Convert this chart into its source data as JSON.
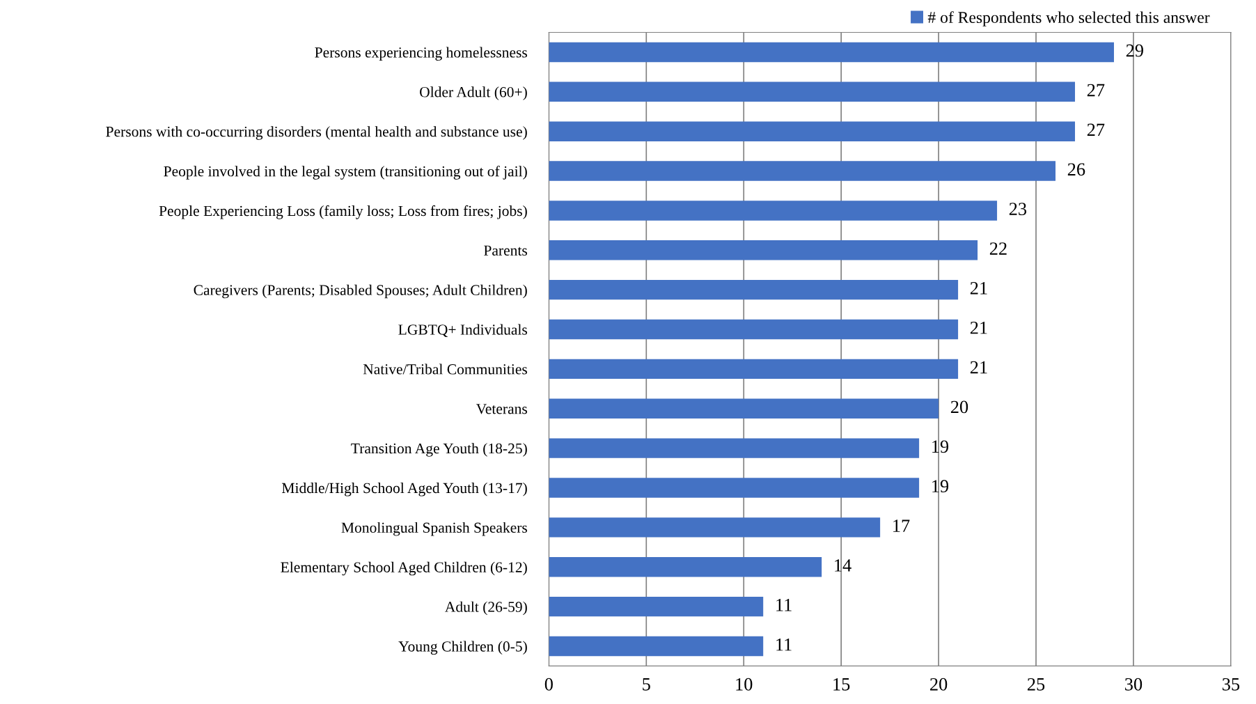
{
  "chart_data": {
    "type": "bar",
    "orientation": "horizontal",
    "categories": [
      "Persons experiencing homelessness",
      "Older Adult (60+)",
      "Persons with co-occurring disorders (mental health and substance use)",
      "People involved in the legal system (transitioning out of jail)",
      "People Experiencing Loss (family loss; Loss from fires; jobs)",
      "Parents",
      "Caregivers (Parents; Disabled Spouses; Adult Children)",
      "LGBTQ+ Individuals",
      "Native/Tribal Communities",
      "Veterans",
      "Transition Age Youth (18-25)",
      "Middle/High School Aged Youth (13-17)",
      "Monolingual Spanish Speakers",
      "Elementary School Aged Children (6-12)",
      "Adult (26-59)",
      "Young Children (0-5)"
    ],
    "series": [
      {
        "name": "# of Respondents who selected this answer",
        "color": "#4472c4",
        "values": [
          29,
          27,
          27,
          26,
          23,
          22,
          21,
          21,
          21,
          20,
          19,
          19,
          17,
          14,
          11,
          11
        ]
      }
    ],
    "xlim": [
      0,
      35
    ],
    "xticks": [
      0,
      5,
      10,
      15,
      20,
      25,
      30,
      35
    ],
    "grid": "x",
    "legend": "top right",
    "data_labels": true
  }
}
